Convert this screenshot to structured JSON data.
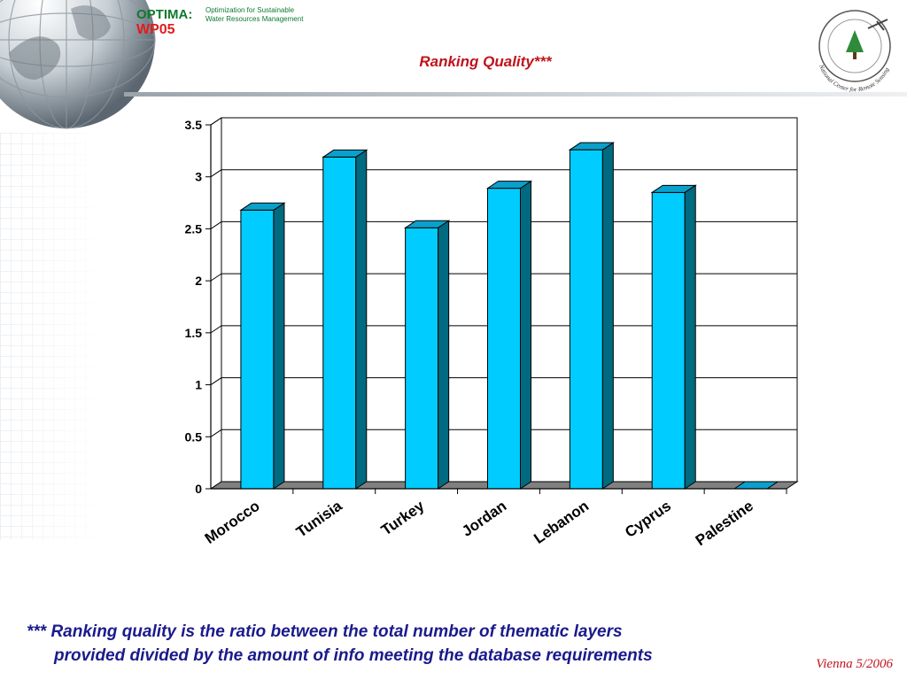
{
  "header": {
    "brand_name": "OPTIMA:",
    "brand_wp": "WP05",
    "brand_subtitle_line1": "Optimization for Sustainable",
    "brand_subtitle_line2": "Water Resources Management",
    "seal_logo_text": "National Center for Remote Sensing"
  },
  "slide": {
    "title": "Ranking Quality***"
  },
  "footnote": {
    "line1": "*** Ranking quality is the ratio between the total number of thematic layers",
    "line2": "provided divided by the amount of info meeting the database requirements"
  },
  "footer": {
    "date": "Vienna 5/2006"
  },
  "colors": {
    "bar_front": "#00ccff",
    "bar_side": "#006a80",
    "bar_top": "#0aa0cc",
    "floor": "#808080",
    "title": "#c0141c",
    "footnote": "#1a1a8c"
  },
  "chart_data": {
    "type": "bar",
    "categories": [
      "Morocco",
      "Tunisia",
      "Turkey",
      "Jordan",
      "Lebanon",
      "Cyprus",
      "Palestine"
    ],
    "values": [
      2.68,
      3.19,
      2.51,
      2.89,
      3.26,
      2.85,
      0
    ],
    "ylim": [
      0,
      3.5
    ],
    "yticks": [
      "0",
      "0.5",
      "1",
      "1.5",
      "2",
      "2.5",
      "3",
      "3.5"
    ],
    "grid": true,
    "legend": "none",
    "style": "3d"
  }
}
